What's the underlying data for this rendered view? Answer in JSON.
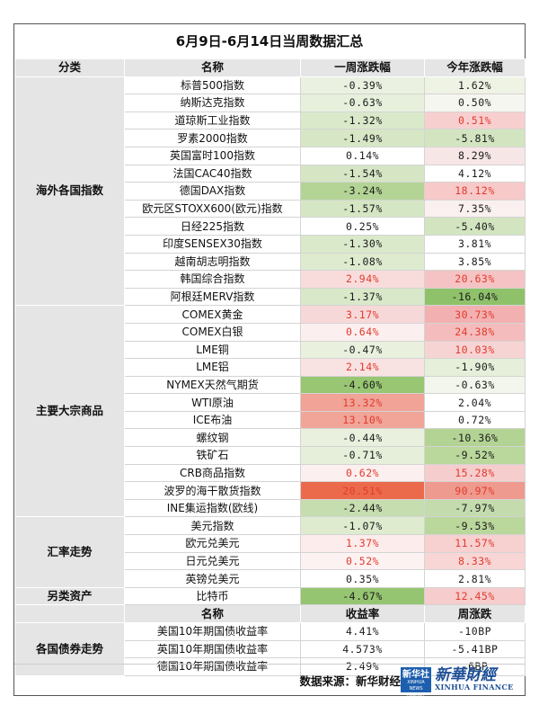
{
  "title": "6月9日-6月14日当周数据汇总",
  "headers": {
    "category": "分类",
    "name": "名称",
    "weekly": "一周涨跌幅",
    "ytd": "今年涨跌幅"
  },
  "groups": [
    {
      "category": "海外各国指数",
      "rows": [
        {
          "name": "标普500指数",
          "weekly": "-0.39%",
          "ytd": "1.62%",
          "wbg": "#eaf1e0",
          "ybg": "#eef3e4",
          "wc": "neg",
          "yc": "neg"
        },
        {
          "name": "纳斯达克指数",
          "weekly": "-0.63%",
          "ytd": "0.50%",
          "wbg": "#e7f0dc",
          "ybg": "#f6f6f0",
          "wc": "neg",
          "yc": "neg"
        },
        {
          "name": "道琼斯工业指数",
          "weekly": "-1.32%",
          "ytd": "0.51%",
          "wbg": "#dbe9cb",
          "ybg": "#f8cfcf",
          "wc": "neg",
          "yc": "pos"
        },
        {
          "name": "罗素2000指数",
          "weekly": "-1.49%",
          "ytd": "-5.81%",
          "wbg": "#d7e7c6",
          "ybg": "#d2e5c0",
          "wc": "neg",
          "yc": "neg"
        },
        {
          "name": "英国富时100指数",
          "weekly": "0.14%",
          "ytd": "8.29%",
          "wbg": "#ffffff",
          "ybg": "#f7e6e6",
          "wc": "neg",
          "yc": "neg"
        },
        {
          "name": "法国CAC40指数",
          "weekly": "-1.54%",
          "ytd": "4.12%",
          "wbg": "#d6e6c5",
          "ybg": "#ffffff",
          "wc": "neg",
          "yc": "neg"
        },
        {
          "name": "德国DAX指数",
          "weekly": "-3.24%",
          "ytd": "18.12%",
          "wbg": "#b4d495",
          "ybg": "#f7c9c9",
          "wc": "neg",
          "yc": "pos"
        },
        {
          "name": "欧元区STOXX600(欧元)指数",
          "weekly": "-1.57%",
          "ytd": "7.35%",
          "wbg": "#d5e6c4",
          "ybg": "#fbf0f0",
          "wc": "neg",
          "yc": "neg"
        },
        {
          "name": "日经225指数",
          "weekly": "0.25%",
          "ytd": "-5.40%",
          "wbg": "#ffffff",
          "ybg": "#d2e5c0",
          "wc": "neg",
          "yc": "neg"
        },
        {
          "name": "印度SENSEX30指数",
          "weekly": "-1.30%",
          "ytd": "3.81%",
          "wbg": "#dbe9cb",
          "ybg": "#ffffff",
          "wc": "neg",
          "yc": "neg"
        },
        {
          "name": "越南胡志明指数",
          "weekly": "-1.08%",
          "ytd": "3.85%",
          "wbg": "#deebcf",
          "ybg": "#ffffff",
          "wc": "neg",
          "yc": "neg"
        },
        {
          "name": "韩国综合指数",
          "weekly": "2.94%",
          "ytd": "20.63%",
          "wbg": "#f8dcdc",
          "ybg": "#f5c3c3",
          "wc": "pos",
          "yc": "pos"
        },
        {
          "name": "阿根廷MERV指数",
          "weekly": "-1.37%",
          "ytd": "-16.04%",
          "wbg": "#d9e8c9",
          "ybg": "#8fc16a",
          "wc": "neg",
          "yc": "neg"
        }
      ]
    },
    {
      "category": "主要大宗商品",
      "rows": [
        {
          "name": "COMEX黄金",
          "weekly": "3.17%",
          "ytd": "30.73%",
          "wbg": "#f7d8d8",
          "ybg": "#f3b0b0",
          "wc": "pos",
          "yc": "pos"
        },
        {
          "name": "COMEX白银",
          "weekly": "0.64%",
          "ytd": "24.38%",
          "wbg": "#fcefef",
          "ybg": "#f4bcbc",
          "wc": "pos",
          "yc": "pos"
        },
        {
          "name": "LME铜",
          "weekly": "-0.47%",
          "ytd": "10.03%",
          "wbg": "#e9f1de",
          "ybg": "#f7d4d4",
          "wc": "neg",
          "yc": "pos"
        },
        {
          "name": "LME铝",
          "weekly": "2.14%",
          "ytd": "-1.90%",
          "wbg": "#f9e2e2",
          "ybg": "#e5efd9",
          "wc": "pos",
          "yc": "neg"
        },
        {
          "name": "NYMEX天然气期货",
          "weekly": "-4.60%",
          "ytd": "-0.63%",
          "wbg": "#98c673",
          "ybg": "#f2f6ec",
          "wc": "neg",
          "yc": "neg"
        },
        {
          "name": "WTI原油",
          "weekly": "13.32%",
          "ytd": "2.04%",
          "wbg": "#f0a396",
          "ybg": "#ffffff",
          "wc": "pos",
          "yc": "neg"
        },
        {
          "name": "ICE布油",
          "weekly": "13.10%",
          "ytd": "0.72%",
          "wbg": "#f0a598",
          "ybg": "#ffffff",
          "wc": "pos",
          "yc": "neg"
        },
        {
          "name": "螺纹钢",
          "weekly": "-0.44%",
          "ytd": "-10.36%",
          "wbg": "#e9f1de",
          "ybg": "#b3d394",
          "wc": "neg",
          "yc": "neg"
        },
        {
          "name": "铁矿石",
          "weekly": "-0.71%",
          "ytd": "-9.52%",
          "wbg": "#e5efda",
          "ybg": "#bad79c",
          "wc": "neg",
          "yc": "neg"
        },
        {
          "name": "CRB商品指数",
          "weekly": "0.62%",
          "ytd": "15.28%",
          "wbg": "#fcefef",
          "ybg": "#f6cdcd",
          "wc": "pos",
          "yc": "pos"
        },
        {
          "name": "波罗的海干散货指数",
          "weekly": "20.51%",
          "ytd": "90.97%",
          "wbg": "#ec6a4c",
          "ybg": "#ef9a8e",
          "wc": "pos",
          "yc": "pos"
        },
        {
          "name": "INE集运指数(欧线)",
          "weekly": "-2.44%",
          "ytd": "-7.97%",
          "wbg": "#c6ddb0",
          "ybg": "#c4dcad",
          "wc": "neg",
          "yc": "neg"
        }
      ]
    },
    {
      "category": "汇率走势",
      "rows": [
        {
          "name": "美元指数",
          "weekly": "-1.07%",
          "ytd": "-9.53%",
          "wbg": "#deebcf",
          "ybg": "#bad79c",
          "wc": "neg",
          "yc": "neg"
        },
        {
          "name": "欧元兑美元",
          "weekly": "1.37%",
          "ytd": "11.57%",
          "wbg": "#fcecec",
          "ybg": "#f7d0d0",
          "wc": "pos",
          "yc": "pos"
        },
        {
          "name": "日元兑美元",
          "weekly": "0.52%",
          "ytd": "8.33%",
          "wbg": "#fdf2f2",
          "ybg": "#f8d6d6",
          "wc": "pos",
          "yc": "pos"
        },
        {
          "name": "英镑兑美元",
          "weekly": "0.35%",
          "ytd": "2.81%",
          "wbg": "#ffffff",
          "ybg": "#ffffff",
          "wc": "neg",
          "yc": "neg"
        }
      ]
    },
    {
      "category": "另类资产",
      "rows": [
        {
          "name": "比特币",
          "weekly": "-4.67%",
          "ytd": "12.45%",
          "wbg": "#96c571",
          "ybg": "#f6cccc",
          "wc": "neg",
          "yc": "pos"
        }
      ]
    }
  ],
  "bond_headers": {
    "name": "名称",
    "yield": "收益率",
    "change": "周涨跌"
  },
  "bonds": {
    "category": "各国债券走势",
    "rows": [
      {
        "name": "美国10年期国债收益率",
        "yield": "4.41%",
        "change": "-10BP"
      },
      {
        "name": "英国10年期国债收益率",
        "yield": "4.573%",
        "change": "-5.41BP"
      },
      {
        "name": "德国10年期国债收益率",
        "yield": "2.49%",
        "change": "-6BP"
      }
    ]
  },
  "footer": {
    "source": "数据来源：新华财经",
    "logo_badge_zh": "新华社",
    "logo_badge_en": "XINHUA NEWS AGENCY",
    "logo_brand_cn": "新華財經",
    "logo_brand_en": "XINHUA FINANCE"
  },
  "colors": {
    "header_bg": "#e5e5e5",
    "positive_text": "#e23b2e",
    "negative_text": "#1b1b1b",
    "logo_blue": "#1d5fae"
  }
}
